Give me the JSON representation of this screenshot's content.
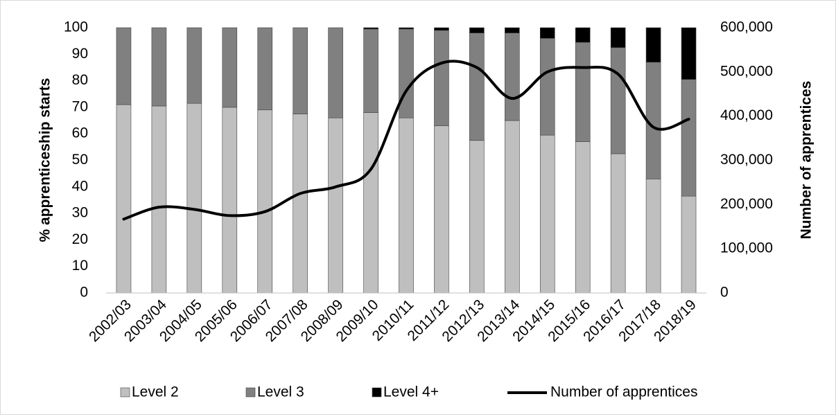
{
  "chart_data": {
    "type": "bar",
    "stacked": true,
    "categories": [
      "2002/03",
      "2003/04",
      "2004/05",
      "2005/06",
      "2006/07",
      "2007/08",
      "2008/09",
      "2009/10",
      "2010/11",
      "2011/12",
      "2012/13",
      "2013/14",
      "2014/15",
      "2015/16",
      "2016/17",
      "2017/18",
      "2018/19"
    ],
    "series": [
      {
        "name": "Level 2",
        "type": "bar",
        "axis": "left",
        "color": "#bfbfbf",
        "values": [
          71,
          70.5,
          71.5,
          70,
          69,
          67.5,
          66,
          68,
          66,
          63,
          57.5,
          65,
          59.5,
          57,
          52.5,
          43,
          36.5
        ]
      },
      {
        "name": "Level 3",
        "type": "bar",
        "axis": "left",
        "color": "#808080",
        "values": [
          29,
          29.5,
          28.5,
          30,
          31,
          32.5,
          34,
          31.5,
          33.5,
          36,
          40.5,
          33,
          36.5,
          37.5,
          40,
          44,
          44
        ]
      },
      {
        "name": "Level 4+",
        "type": "bar",
        "axis": "left",
        "color": "#000000",
        "values": [
          0,
          0,
          0,
          0,
          0,
          0,
          0,
          0.5,
          0.5,
          1,
          2,
          2,
          4,
          5.5,
          7.5,
          13,
          19.5
        ]
      },
      {
        "name": "Number of apprentices",
        "type": "line",
        "axis": "right",
        "color": "#000000",
        "values": [
          167000,
          194000,
          189000,
          175000,
          184000,
          225000,
          240000,
          280000,
          457000,
          520000,
          510000,
          440000,
          500000,
          510000,
          495000,
          375000,
          393000
        ]
      }
    ],
    "ylabel": "% apprenticeship starts",
    "y2label": "Number of apprentices",
    "ylim": [
      0,
      100
    ],
    "y2lim": [
      0,
      600000
    ],
    "yticks": [
      "0",
      "10",
      "20",
      "30",
      "40",
      "50",
      "60",
      "70",
      "80",
      "90",
      "100"
    ],
    "y2ticks": [
      "0",
      "100,000",
      "200,000",
      "300,000",
      "400,000",
      "500,000",
      "600,000"
    ],
    "grid": false,
    "legend_position": "bottom"
  }
}
